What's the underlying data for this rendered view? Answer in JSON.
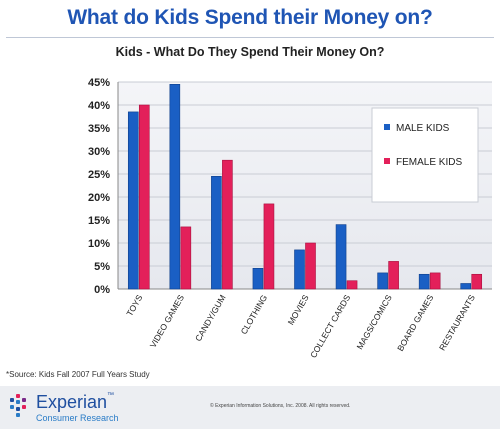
{
  "page": {
    "title": "What do Kids Spend their Money on?",
    "source": "*Source:  Kids Fall 2007 Full Years Study",
    "copyright": "© Experian Information Solutions, Inc. 2008.  All rights reserved."
  },
  "logo": {
    "name": "Experian",
    "tm": "™",
    "sub": "Consumer Research"
  },
  "colors": {
    "male": "#1a5fc4",
    "female": "#e3205a",
    "title": "#1f55b4"
  },
  "chart_data": {
    "type": "bar",
    "title": "Kids - What Do They Spend Their Money On?",
    "categories": [
      "TOYS",
      "VIDEO GAMES",
      "CANDY/GUM",
      "CLOTHING",
      "MOVIES",
      "COLLECT CARDS",
      "MAGS/COMICS",
      "BOARD GAMES",
      "RESTAURANTS"
    ],
    "series": [
      {
        "name": "MALE KIDS",
        "values": [
          38.5,
          44.5,
          24.5,
          4.5,
          8.5,
          14,
          3.5,
          3.2,
          1.2
        ]
      },
      {
        "name": "FEMALE KIDS",
        "values": [
          40,
          13.5,
          28,
          18.5,
          10,
          1.8,
          6,
          3.5,
          3.2
        ]
      }
    ],
    "ylim": [
      0,
      45
    ],
    "yticks": [
      "0%",
      "5%",
      "10%",
      "15%",
      "20%",
      "25%",
      "30%",
      "35%",
      "40%",
      "45%"
    ],
    "grid": true,
    "legend_position": "right"
  }
}
